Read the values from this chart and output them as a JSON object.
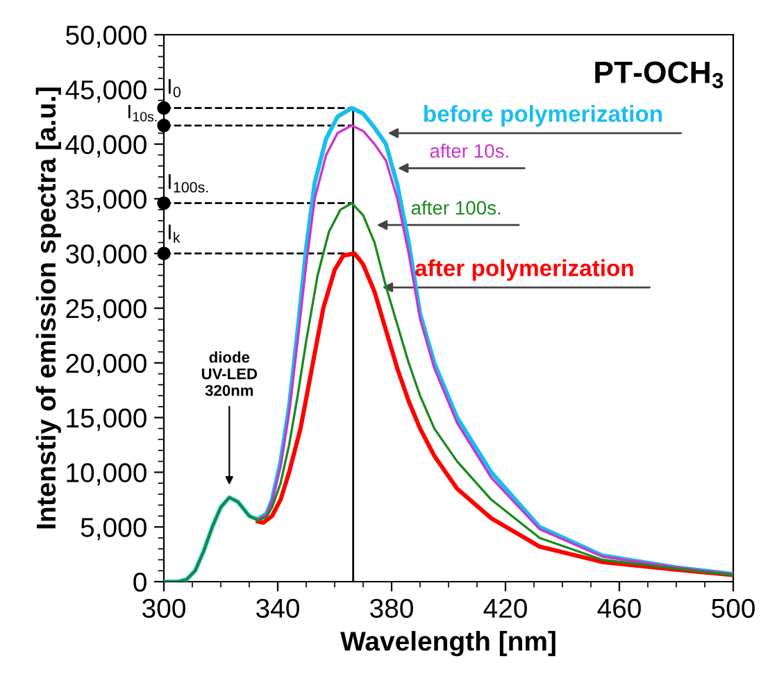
{
  "chart_data": {
    "type": "line",
    "title": "PT-OCH$_{3}$",
    "xlabel": "Wavelength [nm]",
    "ylabel": "Intenstiy of emission spectra [a.u.]",
    "xlim": [
      300,
      500
    ],
    "xticks": [
      300,
      340,
      380,
      420,
      460,
      500
    ],
    "ylim": [
      0,
      50000
    ],
    "yticks": [
      {
        "value": 0,
        "label": "0"
      },
      {
        "value": 5000,
        "label": "5,000"
      },
      {
        "value": 10000,
        "label": "10,000"
      },
      {
        "value": 15000,
        "label": "15,000"
      },
      {
        "value": 20000,
        "label": "20,000"
      },
      {
        "value": 25000,
        "label": "25,000"
      },
      {
        "value": 30000,
        "label": "30,000"
      },
      {
        "value": 35000,
        "label": "35,000"
      },
      {
        "value": 40000,
        "label": "40,000"
      },
      {
        "value": 45000,
        "label": "45,000"
      },
      {
        "value": 50000,
        "label": "50,000"
      }
    ],
    "grid": false,
    "legend": false,
    "marker": "none",
    "line_style": "solid",
    "series": [
      {
        "name": "before polymerization",
        "color": "#19bdf0",
        "x": [
          300,
          305,
          308,
          311,
          314,
          317,
          320,
          323,
          326,
          330,
          333,
          336,
          338,
          341,
          344,
          347,
          350,
          353,
          357,
          361,
          366,
          370,
          374,
          378,
          382,
          386,
          390,
          395,
          403,
          415,
          432,
          454,
          480,
          500
        ],
        "values": [
          0,
          0,
          200,
          1000,
          2800,
          5000,
          6800,
          7700,
          7300,
          6000,
          5700,
          6200,
          7500,
          11000,
          16000,
          23000,
          30500,
          36500,
          40500,
          42500,
          43300,
          42800,
          41500,
          40000,
          36300,
          31000,
          24500,
          20000,
          15000,
          10000,
          5000,
          2400,
          1300,
          700
        ]
      },
      {
        "name": "after 10s.",
        "color": "#cc33cc",
        "x": [
          333,
          336,
          338,
          341,
          344,
          347,
          350,
          353,
          357,
          361,
          366,
          370,
          374,
          378,
          382,
          386,
          390,
          395,
          403,
          415,
          432,
          454,
          480,
          500
        ],
        "values": [
          5700,
          6100,
          7400,
          10500,
          15500,
          22000,
          29000,
          35000,
          39000,
          41000,
          41700,
          41200,
          40000,
          38500,
          35000,
          30000,
          24000,
          19500,
          14500,
          9500,
          4800,
          2300,
          1300,
          700
        ]
      },
      {
        "name": "after 100s.",
        "color": "#1a8a1a",
        "x": [
          300,
          305,
          308,
          311,
          314,
          317,
          320,
          323,
          326,
          330,
          333,
          336,
          338,
          341,
          344,
          347,
          350,
          354,
          358,
          362,
          366,
          370,
          374,
          378,
          382,
          386,
          390,
          395,
          403,
          415,
          432,
          454,
          480,
          500
        ],
        "values": [
          0,
          0,
          200,
          1000,
          2800,
          5000,
          6800,
          7700,
          7300,
          6000,
          5600,
          5900,
          6800,
          9000,
          12500,
          17000,
          22000,
          28000,
          32000,
          34000,
          34600,
          33500,
          31000,
          27000,
          23500,
          20000,
          17000,
          14000,
          11000,
          7500,
          4000,
          2000,
          1200,
          600
        ]
      },
      {
        "name": "after polymerization",
        "color": "#ff0000",
        "x": [
          333,
          335,
          338,
          341,
          344,
          348,
          352,
          356,
          360,
          363,
          367,
          370,
          374,
          378,
          382,
          386,
          390,
          395,
          403,
          415,
          432,
          454,
          480,
          500
        ],
        "values": [
          5500,
          5400,
          6000,
          7500,
          10000,
          14000,
          19500,
          25000,
          28500,
          29800,
          30000,
          29000,
          26500,
          23000,
          19500,
          16500,
          14000,
          11500,
          8500,
          5800,
          3200,
          1800,
          1100,
          600
        ]
      }
    ],
    "ref_lines": [
      {
        "axis": "x",
        "value": 366.5,
        "color": "#000000",
        "line_style": "solid"
      }
    ],
    "annotations": [
      {
        "text": "I$_{0}$",
        "x": 366,
        "y": 43300
      },
      {
        "text": "I$_{10s.}$",
        "x": 366,
        "y": 41700
      },
      {
        "text": "I$_{100s.}$",
        "x": 366,
        "y": 34600
      },
      {
        "text": "I$_{k}$",
        "x": 367,
        "y": 30000
      },
      {
        "text": "diode\nUV-LED\n320nm",
        "x": 323,
        "y": 8500
      }
    ]
  }
}
